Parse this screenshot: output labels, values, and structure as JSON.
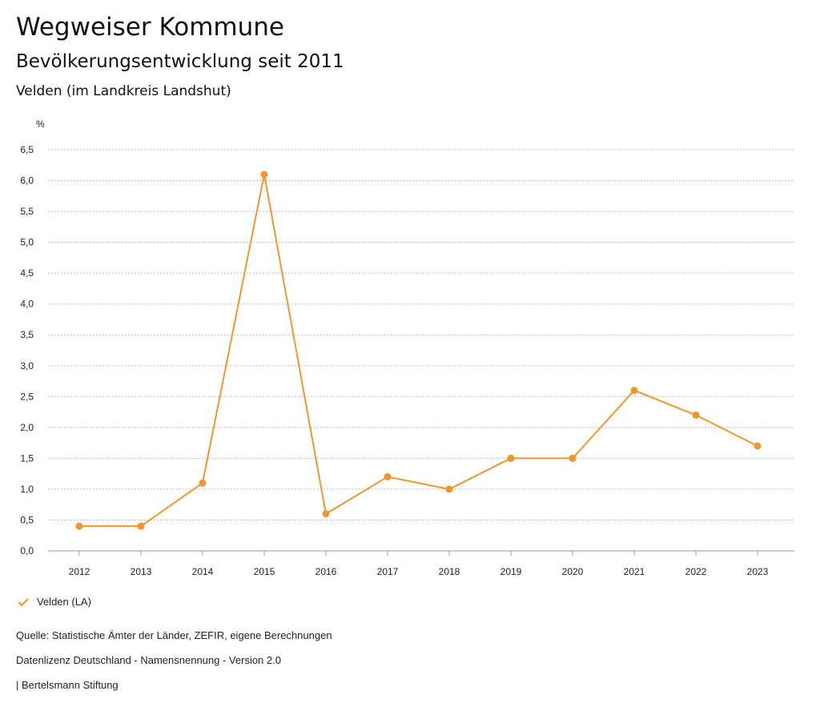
{
  "header": {
    "title": "Wegweiser Kommune",
    "subtitle": "Bevölkerungsentwicklung seit 2011",
    "region": "Velden (im Landkreis Landshut)"
  },
  "chart_data": {
    "type": "line",
    "ylabel": "%",
    "ylim": [
      0,
      6.5
    ],
    "yticks": [
      "0,0",
      "0,5",
      "1,0",
      "1,5",
      "2,0",
      "2,5",
      "3,0",
      "3,5",
      "4,0",
      "4,5",
      "5,0",
      "5,5",
      "6,0",
      "6,5"
    ],
    "grid": true,
    "categories": [
      "2012",
      "2013",
      "2014",
      "2015",
      "2016",
      "2017",
      "2018",
      "2019",
      "2020",
      "2021",
      "2022",
      "2023"
    ],
    "series": [
      {
        "name": "Velden (LA)",
        "color": "#f0962e",
        "values": [
          0.4,
          0.4,
          1.1,
          6.1,
          0.6,
          1.2,
          1.0,
          1.5,
          1.5,
          2.6,
          2.2,
          1.7
        ]
      }
    ],
    "legend_position": "bottom-left"
  },
  "legend": {
    "label": "Velden (LA)",
    "icon": "check-icon"
  },
  "footer": {
    "source": "Quelle: Statistische Ämter der Länder, ZEFIR, eigene Berechnungen",
    "license": "Datenlizenz Deutschland - Namensnennung - Version 2.0",
    "publisher": "| Bertelsmann Stiftung"
  }
}
